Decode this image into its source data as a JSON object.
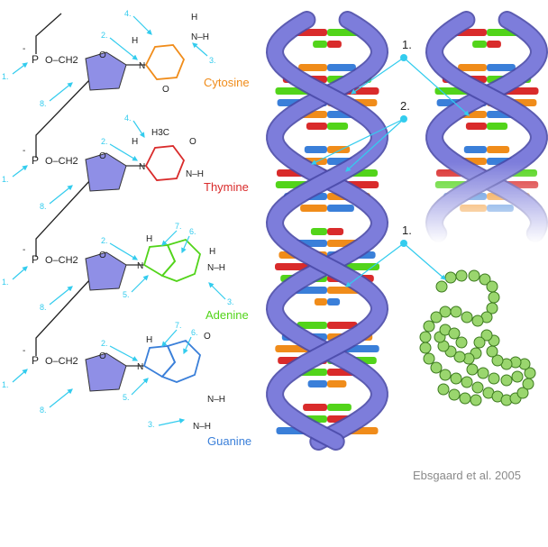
{
  "colors": {
    "sugar": "#8f8fe6",
    "helix": "#7d7ddb",
    "cytosine": "#f08c1a",
    "thymine": "#d92b2b",
    "adenine": "#52d41a",
    "guanine": "#3a7fd9",
    "callout": "#33ccee",
    "bead": "#9ad66e"
  },
  "left_panel": {
    "pointers": {
      "n1": "1.",
      "n2": "2.",
      "n3": "3.",
      "n4": "4.",
      "n5": "5.",
      "n6": "6.",
      "n7": "7.",
      "n8": "8."
    },
    "backbone": {
      "phosphate": "P",
      "charge": "-",
      "ch2": "O–CH2",
      "ring_o": "O"
    },
    "bases": [
      {
        "key": "cytosine",
        "name": "Cytosine",
        "atoms": {
          "nh": "N–H",
          "h": "H",
          "n": "N",
          "o": "O",
          "h2": "H"
        }
      },
      {
        "key": "thymine",
        "name": "Thymine",
        "atoms": {
          "methyl": "H3C",
          "nh": "N–H",
          "o": "O",
          "n": "N",
          "h": "H"
        }
      },
      {
        "key": "adenine",
        "name": "Adenine",
        "atoms": {
          "n": "N",
          "h": "H",
          "nh": "N–H",
          "hn": "H"
        }
      },
      {
        "key": "guanine",
        "name": "Guanine",
        "atoms": {
          "n": "N",
          "o": "O",
          "nh": "N–H",
          "h": "H",
          "nh2": "N–H"
        }
      }
    ]
  },
  "right_panel": {
    "labels": {
      "one_top": "1.",
      "two": "2.",
      "one_bottom": "1."
    }
  },
  "credit": "Ebsgaard et al. 2005"
}
